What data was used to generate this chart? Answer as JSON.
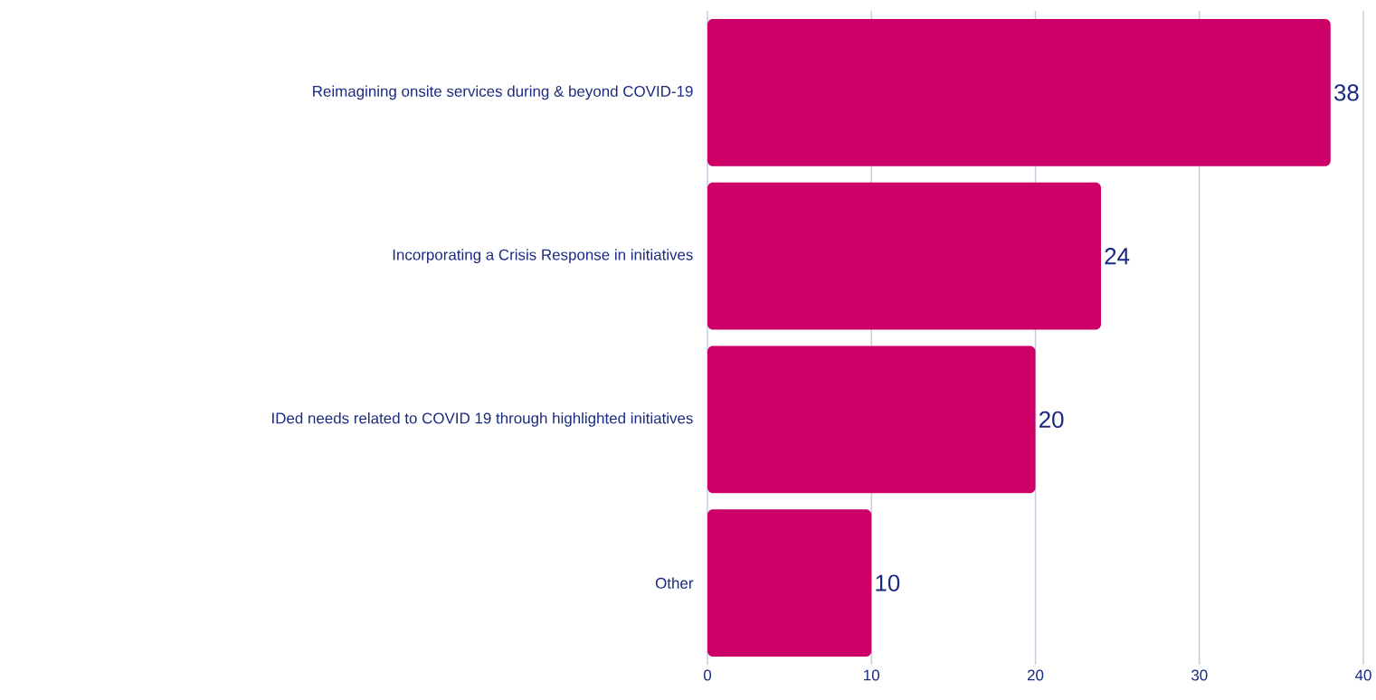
{
  "chart_data": {
    "type": "bar",
    "orientation": "horizontal",
    "categories": [
      "Reimagining onsite services during & beyond COVID-19",
      "Incorporating a Crisis Response in initiatives",
      "IDed needs related to COVID 19 through highlighted initiatives",
      "Other"
    ],
    "values": [
      38,
      24,
      20,
      10
    ],
    "color": "#cc0066",
    "xlim": [
      0,
      40
    ],
    "xticks": [
      0,
      10,
      20,
      30,
      40
    ],
    "grid": "x",
    "data_labels": true
  }
}
